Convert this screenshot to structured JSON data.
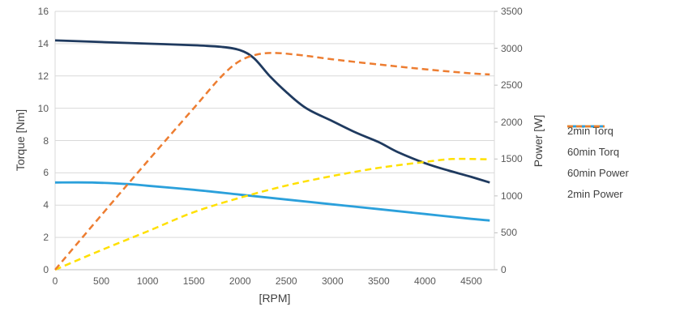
{
  "chart_data": {
    "type": "line",
    "title": "",
    "xlabel": "[RPM]",
    "ylabel_left": "Torque [Nm]",
    "ylabel_right": "Power [W]",
    "grid": true,
    "legend_position": "right",
    "x_axis": {
      "min": 0,
      "max": 4750,
      "ticks": [
        0,
        500,
        1000,
        1500,
        2000,
        2500,
        3000,
        3500,
        4000,
        4500
      ]
    },
    "y_left": {
      "min": 0,
      "max": 16,
      "ticks": [
        0,
        2,
        4,
        6,
        8,
        10,
        12,
        14,
        16
      ]
    },
    "y_right": {
      "min": 0,
      "max": 3500,
      "ticks": [
        0,
        500,
        1000,
        1500,
        2000,
        2500,
        3000,
        3500
      ]
    },
    "series": [
      {
        "name": "2min Torq",
        "axis": "left",
        "color": "#1f3a5f",
        "style": "solid",
        "points": [
          [
            0,
            14.2
          ],
          [
            500,
            14.1
          ],
          [
            1000,
            14.0
          ],
          [
            1500,
            13.9
          ],
          [
            1800,
            13.8
          ],
          [
            2000,
            13.6
          ],
          [
            2150,
            13.1
          ],
          [
            2320,
            12.0
          ],
          [
            2500,
            11.0
          ],
          [
            2715,
            10.0
          ],
          [
            3000,
            9.2
          ],
          [
            3250,
            8.5
          ],
          [
            3500,
            7.9
          ],
          [
            3700,
            7.3
          ],
          [
            4000,
            6.6
          ],
          [
            4250,
            6.15
          ],
          [
            4500,
            5.75
          ],
          [
            4700,
            5.4
          ]
        ]
      },
      {
        "name": "60min Torq",
        "axis": "left",
        "color": "#2ba0db",
        "style": "solid",
        "points": [
          [
            0,
            5.4
          ],
          [
            400,
            5.4
          ],
          [
            800,
            5.3
          ],
          [
            1000,
            5.2
          ],
          [
            1500,
            4.95
          ],
          [
            2000,
            4.65
          ],
          [
            2500,
            4.35
          ],
          [
            3000,
            4.05
          ],
          [
            3500,
            3.75
          ],
          [
            4000,
            3.45
          ],
          [
            4500,
            3.15
          ],
          [
            4700,
            3.05
          ]
        ]
      },
      {
        "name": "60min Power",
        "axis": "right",
        "color": "#ffe000",
        "style": "dashed",
        "points": [
          [
            0,
            0
          ],
          [
            500,
            265
          ],
          [
            1000,
            520
          ],
          [
            1500,
            780
          ],
          [
            2000,
            975
          ],
          [
            2500,
            1140
          ],
          [
            3000,
            1270
          ],
          [
            3500,
            1380
          ],
          [
            4000,
            1460
          ],
          [
            4300,
            1500
          ],
          [
            4700,
            1495
          ]
        ]
      },
      {
        "name": "2min Power",
        "axis": "right",
        "color": "#ed7d31",
        "style": "dashed",
        "points": [
          [
            0,
            0
          ],
          [
            500,
            740
          ],
          [
            1000,
            1470
          ],
          [
            1500,
            2190
          ],
          [
            1800,
            2620
          ],
          [
            2000,
            2830
          ],
          [
            2200,
            2920
          ],
          [
            2400,
            2935
          ],
          [
            2700,
            2900
          ],
          [
            3000,
            2850
          ],
          [
            3500,
            2780
          ],
          [
            4000,
            2715
          ],
          [
            4500,
            2660
          ],
          [
            4700,
            2645
          ]
        ]
      }
    ]
  },
  "colors": {
    "background": "#ffffff",
    "gridline": "#d9d9d9",
    "axis_line": "#bfbfbf",
    "tick_text": "#595959",
    "label_text": "#404040"
  }
}
